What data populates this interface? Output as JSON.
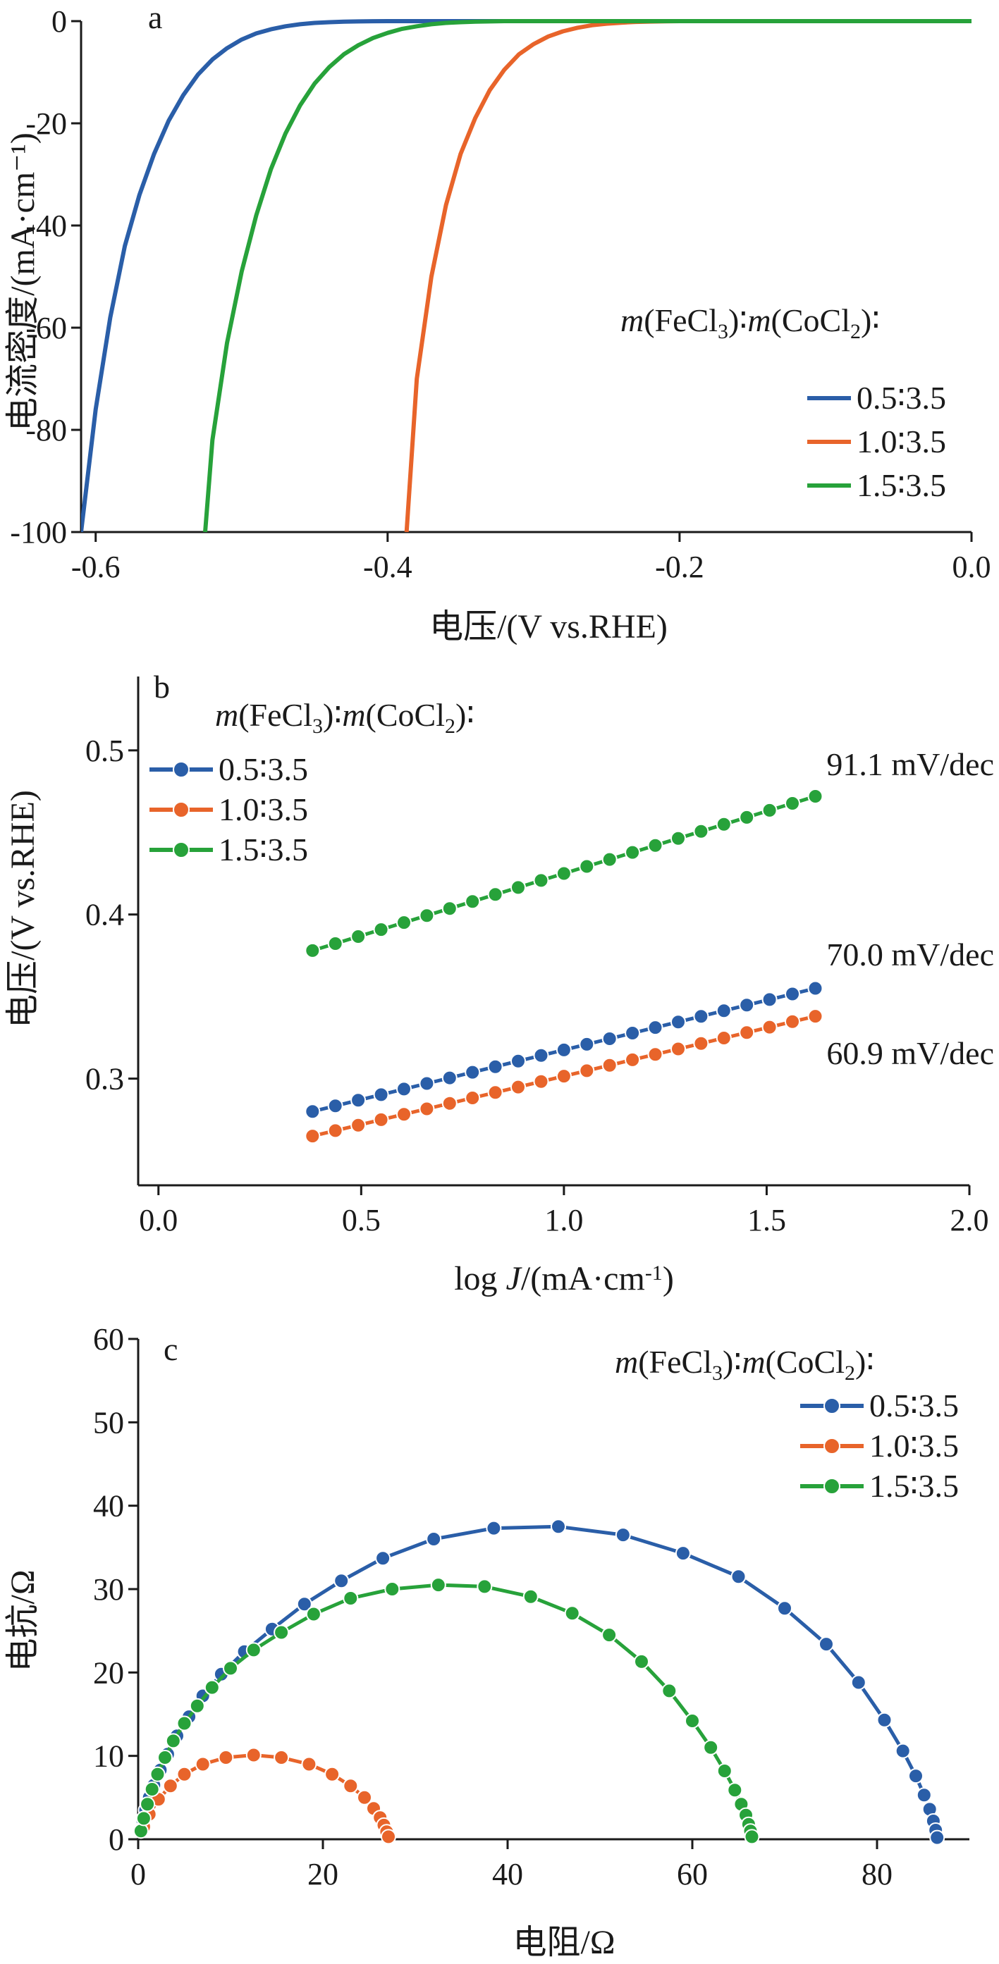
{
  "chart_data": [
    {
      "panel": "a",
      "type": "line",
      "xlabel": "电压/(V vs.RHE)",
      "ylabel": "电流密度/(mA·cm⁻¹)",
      "xlim": [
        -0.61,
        0.0
      ],
      "ylim": [
        -100,
        0
      ],
      "xticks": [
        -0.6,
        -0.4,
        -0.2,
        0.0
      ],
      "xtick_labels": [
        "-0.6",
        "-0.4",
        "-0.2",
        "0.0"
      ],
      "yticks": [
        0,
        -20,
        -40,
        -60,
        -80,
        -100
      ],
      "ytick_labels": [
        "0",
        "-20",
        "-40",
        "-60",
        "-80",
        "-100"
      ],
      "grid": false,
      "legend": {
        "title": "m(FeCl3)∶m(CoCl2)∶",
        "position": "right",
        "entries": [
          "0.5∶3.5",
          "1.0∶3.5",
          "1.5∶3.5"
        ]
      },
      "series": [
        {
          "name": "0.5∶3.5",
          "color": "#2a5ea8",
          "x": [
            -0.61,
            -0.6,
            -0.59,
            -0.58,
            -0.57,
            -0.56,
            -0.55,
            -0.54,
            -0.53,
            -0.52,
            -0.51,
            -0.5,
            -0.49,
            -0.48,
            -0.47,
            -0.46,
            -0.45,
            -0.44,
            -0.43,
            -0.42,
            -0.41,
            -0.4,
            -0.3,
            -0.2,
            -0.1,
            0.0
          ],
          "y": [
            -100,
            -76,
            -58,
            -44,
            -34,
            -26,
            -19.5,
            -14.5,
            -10.5,
            -7.5,
            -5.3,
            -3.6,
            -2.4,
            -1.6,
            -1.0,
            -0.6,
            -0.35,
            -0.2,
            -0.1,
            -0.05,
            -0.02,
            0,
            0,
            0,
            0,
            0
          ]
        },
        {
          "name": "1.0∶3.5",
          "color": "#e8642a",
          "x": [
            -0.387,
            -0.38,
            -0.37,
            -0.36,
            -0.35,
            -0.34,
            -0.33,
            -0.32,
            -0.31,
            -0.3,
            -0.29,
            -0.28,
            -0.27,
            -0.26,
            -0.25,
            -0.24,
            -0.23,
            -0.22,
            -0.21,
            -0.2,
            -0.1,
            0.0
          ],
          "y": [
            -100,
            -70,
            -50,
            -36,
            -26,
            -19,
            -13.5,
            -9.5,
            -6.5,
            -4.5,
            -3.0,
            -2.0,
            -1.3,
            -0.8,
            -0.5,
            -0.3,
            -0.15,
            -0.08,
            -0.03,
            0,
            0,
            0
          ]
        },
        {
          "name": "1.5∶3.5",
          "color": "#27a23a",
          "x": [
            -0.525,
            -0.52,
            -0.51,
            -0.5,
            -0.49,
            -0.48,
            -0.47,
            -0.46,
            -0.45,
            -0.44,
            -0.43,
            -0.42,
            -0.41,
            -0.4,
            -0.39,
            -0.38,
            -0.37,
            -0.36,
            -0.35,
            -0.34,
            -0.33,
            -0.32,
            -0.3,
            -0.2,
            -0.1,
            0.0
          ],
          "y": [
            -100,
            -82,
            -63,
            -49,
            -38,
            -29,
            -22,
            -16.5,
            -12.2,
            -9.0,
            -6.5,
            -4.7,
            -3.3,
            -2.3,
            -1.5,
            -1.0,
            -0.6,
            -0.35,
            -0.2,
            -0.1,
            -0.05,
            0,
            0,
            0,
            0,
            0
          ]
        }
      ]
    },
    {
      "panel": "b",
      "type": "line",
      "xlabel": "log J/(mA·cm⁻¹)",
      "ylabel": "电压/(V vs.RHE)",
      "xlim": [
        -0.05,
        2.0
      ],
      "ylim": [
        0.235,
        0.545
      ],
      "xticks": [
        0.0,
        0.5,
        1.0,
        1.5,
        2.0
      ],
      "xtick_labels": [
        "0.0",
        "0.5",
        "1.0",
        "1.5",
        "2.0"
      ],
      "yticks": [
        0.3,
        0.4,
        0.5
      ],
      "ytick_labels": [
        "0.3",
        "0.4",
        "0.5"
      ],
      "grid": false,
      "legend": {
        "title": "m(FeCl3)∶m(CoCl2)∶",
        "position": "top-left",
        "entries": [
          "0.5∶3.5",
          "1.0∶3.5",
          "1.5∶3.5"
        ]
      },
      "annotations": [
        "91.1 mV/dec",
        "70.0 mV/dec",
        "60.9 mV/dec"
      ],
      "series": [
        {
          "name": "0.5∶3.5",
          "color": "#2a5ea8",
          "x_start": 0.38,
          "x_end": 1.62,
          "points": 23,
          "y_start": 0.28,
          "y_end": 0.355,
          "tafel_slope": "70.0 mV/dec"
        },
        {
          "name": "1.0∶3.5",
          "color": "#e8642a",
          "x_start": 0.38,
          "x_end": 1.62,
          "points": 23,
          "y_start": 0.265,
          "y_end": 0.338,
          "tafel_slope": "60.9 mV/dec"
        },
        {
          "name": "1.5∶3.5",
          "color": "#27a23a",
          "x_start": 0.38,
          "x_end": 1.62,
          "points": 23,
          "y_start": 0.378,
          "y_end": 0.472,
          "tafel_slope": "91.1 mV/dec"
        }
      ]
    },
    {
      "panel": "c",
      "type": "scatter",
      "xlabel": "电阻/Ω",
      "ylabel": "电抗/Ω",
      "xlim": [
        0,
        90
      ],
      "ylim": [
        0,
        60
      ],
      "xticks": [
        0,
        20,
        40,
        60,
        80
      ],
      "xtick_labels": [
        "0",
        "20",
        "40",
        "60",
        "80"
      ],
      "yticks": [
        0,
        10,
        20,
        30,
        40,
        50,
        60
      ],
      "ytick_labels": [
        "0",
        "10",
        "20",
        "30",
        "40",
        "50",
        "60"
      ],
      "grid": false,
      "legend": {
        "title": "m(FeCl3)∶m(CoCl2)∶",
        "position": "top-right",
        "entries": [
          "0.5∶3.5",
          "1.0∶3.5",
          "1.5∶3.5"
        ]
      },
      "series": [
        {
          "name": "0.5∶3.5",
          "color": "#2a5ea8",
          "x": [
            0.3,
            0.5,
            0.8,
            1.2,
            1.7,
            2.4,
            3.2,
            4.2,
            5.5,
            7.0,
            9.0,
            11.5,
            14.5,
            18.0,
            22.0,
            26.5,
            32.0,
            38.5,
            45.5,
            52.5,
            59.0,
            65.0,
            70.0,
            74.5,
            78.0,
            80.8,
            82.8,
            84.2,
            85.1,
            85.7,
            86.1,
            86.35,
            86.5
          ],
          "y": [
            1.0,
            2.2,
            3.5,
            5.0,
            6.5,
            8.3,
            10.2,
            12.4,
            14.7,
            17.2,
            19.8,
            22.5,
            25.2,
            28.2,
            31.0,
            33.7,
            36.0,
            37.3,
            37.5,
            36.5,
            34.3,
            31.5,
            27.7,
            23.4,
            18.8,
            14.3,
            10.6,
            7.6,
            5.3,
            3.6,
            2.2,
            1.1,
            0.2
          ]
        },
        {
          "name": "1.0∶3.5",
          "color": "#e8642a",
          "x": [
            0.6,
            1.2,
            2.2,
            3.5,
            5.0,
            7.0,
            9.5,
            12.5,
            15.5,
            18.5,
            21.0,
            23.0,
            24.5,
            25.5,
            26.2,
            26.6,
            26.9,
            27.1
          ],
          "y": [
            1.5,
            3.0,
            4.8,
            6.4,
            7.8,
            9.0,
            9.8,
            10.1,
            9.8,
            9.0,
            7.8,
            6.4,
            5.0,
            3.7,
            2.6,
            1.7,
            0.9,
            0.3
          ]
        },
        {
          "name": "1.5∶3.5",
          "color": "#27a23a",
          "x": [
            0.3,
            0.6,
            1.0,
            1.5,
            2.1,
            2.9,
            3.8,
            5.0,
            6.4,
            8.0,
            10.0,
            12.5,
            15.5,
            19.0,
            23.0,
            27.5,
            32.5,
            37.5,
            42.5,
            47.0,
            51.0,
            54.5,
            57.5,
            60.0,
            62.0,
            63.5,
            64.6,
            65.3,
            65.8,
            66.1,
            66.3,
            66.45
          ],
          "y": [
            1.0,
            2.5,
            4.2,
            6.0,
            7.8,
            9.8,
            11.8,
            13.9,
            16.0,
            18.2,
            20.5,
            22.7,
            24.8,
            27.0,
            28.9,
            30.0,
            30.5,
            30.3,
            29.1,
            27.1,
            24.5,
            21.3,
            17.8,
            14.2,
            11.0,
            8.2,
            5.9,
            4.2,
            2.9,
            1.8,
            1.0,
            0.3
          ]
        }
      ]
    }
  ]
}
